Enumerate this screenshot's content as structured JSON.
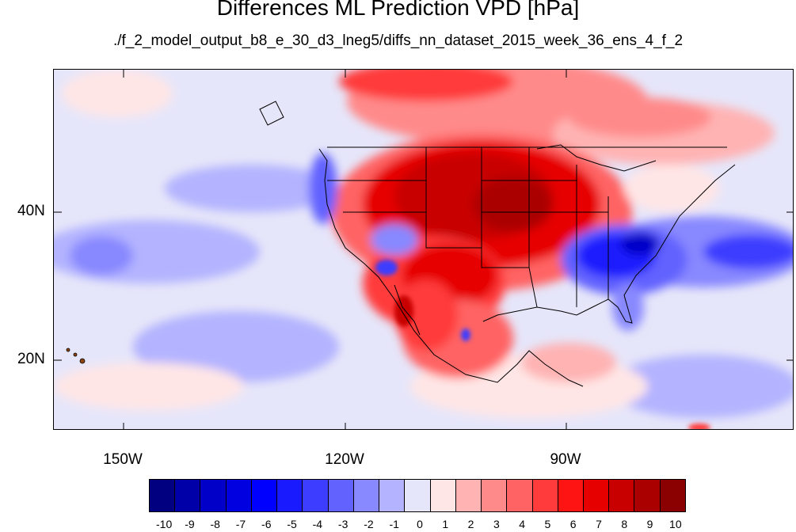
{
  "title": "Differences ML Prediction VPD [hPa]",
  "subtitle": "./f_2_model_output_b8_e_30_d3_lneg5/diffs_nn_dataset_2015_week_36_ens_4_f_2",
  "lat_labels": [
    "40N",
    "20N"
  ],
  "lon_labels": [
    "150W",
    "120W",
    "90W"
  ],
  "colorbar": {
    "labels": [
      "-10",
      "-9",
      "-8",
      "-7",
      "-6",
      "-5",
      "-4",
      "-3",
      "-2",
      "-1",
      "0",
      "1",
      "2",
      "3",
      "4",
      "5",
      "6",
      "7",
      "8",
      "9",
      "10"
    ],
    "colors": [
      "#000080",
      "#0000a8",
      "#0000c8",
      "#0000e0",
      "#0000ff",
      "#1a1aff",
      "#3d3dff",
      "#6262ff",
      "#8888ff",
      "#b3b3ff",
      "#e6e6fa",
      "#ffe6e6",
      "#ffb3b3",
      "#ff8a8a",
      "#ff6363",
      "#ff3b3b",
      "#ff1414",
      "#e60000",
      "#c80000",
      "#aa0000",
      "#8b0000"
    ]
  }
}
